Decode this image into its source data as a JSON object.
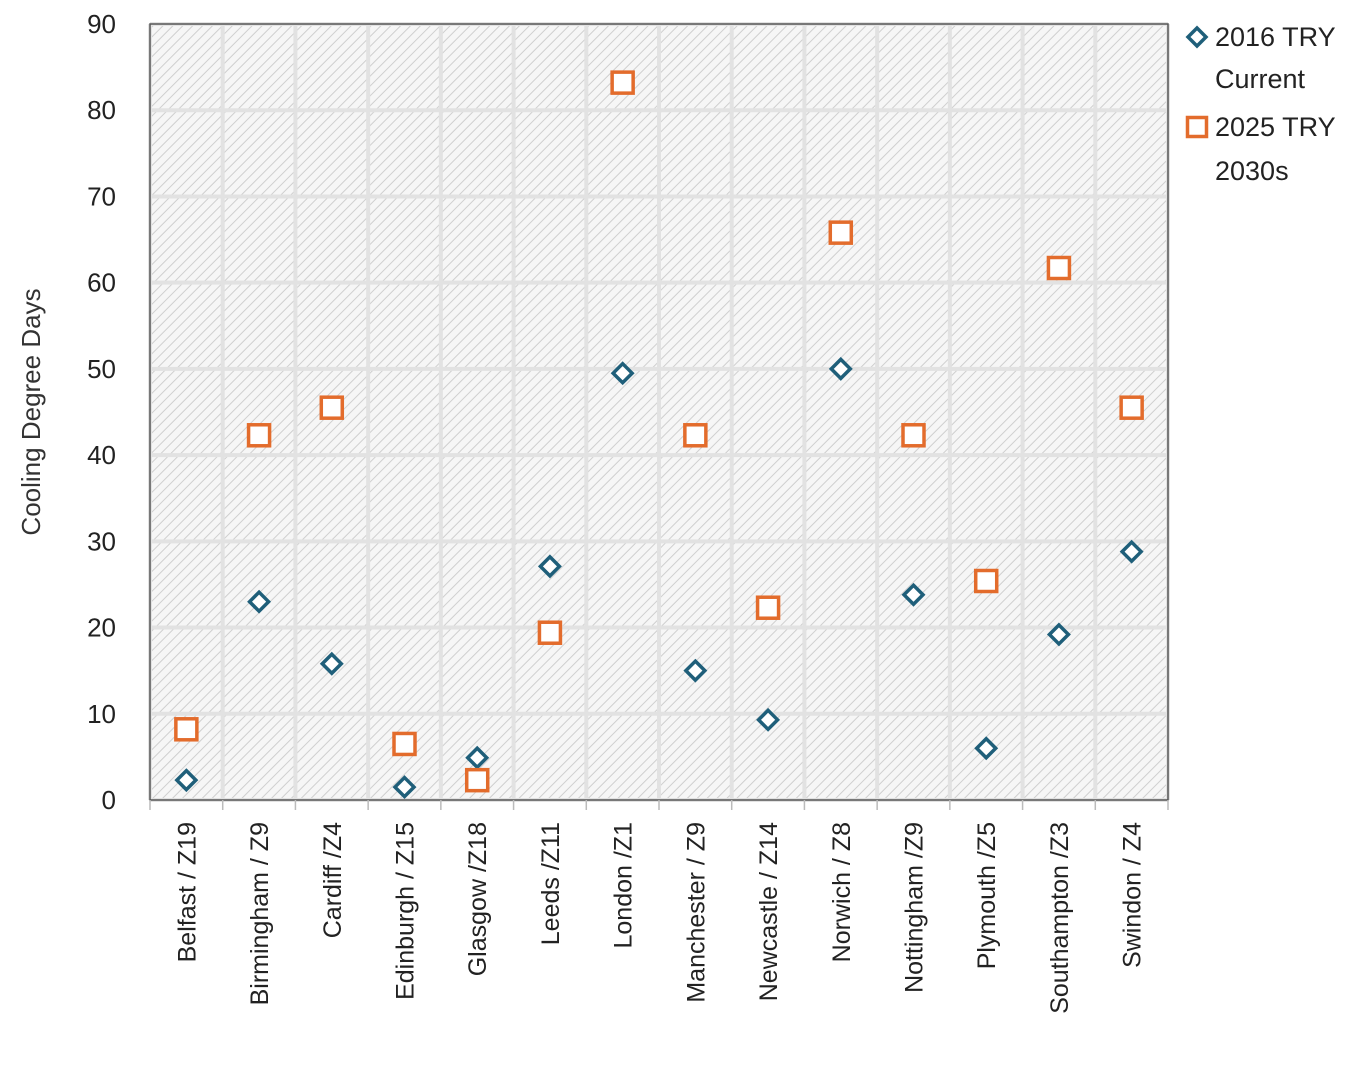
{
  "chart_data": {
    "type": "scatter",
    "title": "",
    "xlabel": "",
    "ylabel": "Cooling Degree Days",
    "ylim": [
      0,
      90
    ],
    "yticks": [
      "0",
      "10",
      "20",
      "30",
      "40",
      "50",
      "60",
      "70",
      "80",
      "90"
    ],
    "grid": true,
    "legend_position": "right",
    "categories": [
      "Belfast / Z19",
      "Birmingham / Z9",
      "Cardiff /Z4",
      "Edinburgh / Z15",
      "Glasgow /Z18",
      "Leeds /Z11",
      "London /Z1",
      "Manchester / Z9",
      "Newcastle / Z14",
      "Norwich / Z8",
      "Nottingham /Z9",
      "Plymouth /Z5",
      "Southampton /Z3",
      "Swindon / Z4"
    ],
    "series": [
      {
        "name_lines": [
          "2016 TRY",
          "Current"
        ],
        "marker": "diamond",
        "color": "#1f5f7a",
        "values": [
          2.3,
          23.0,
          15.8,
          1.5,
          4.9,
          27.1,
          49.5,
          15.0,
          9.3,
          50.0,
          23.8,
          6.0,
          19.2,
          28.8
        ]
      },
      {
        "name_lines": [
          "2025 TRY",
          "2030s"
        ],
        "marker": "square",
        "color": "#e36c2c",
        "values": [
          8.2,
          42.3,
          45.5,
          6.5,
          2.3,
          19.4,
          83.2,
          42.3,
          22.3,
          65.8,
          42.3,
          25.4,
          61.7,
          45.5
        ]
      }
    ]
  }
}
